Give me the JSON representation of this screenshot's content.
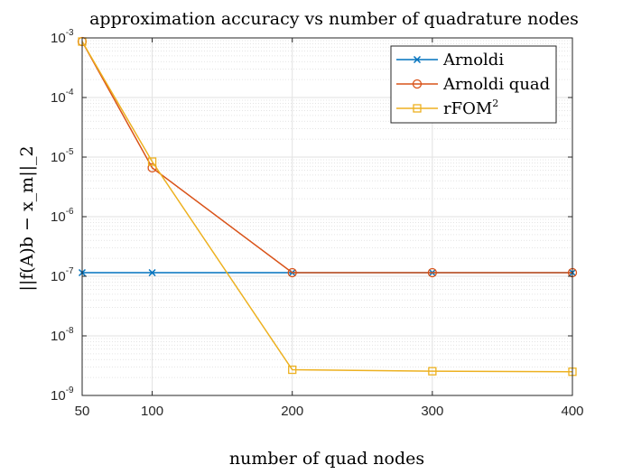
{
  "chart_data": {
    "type": "line",
    "title": "approximation accuracy vs number of quadrature nodes",
    "xlabel": "number of quad nodes",
    "ylabel": "||f(A)b − x_m||_2",
    "x": [
      50,
      100,
      200,
      300,
      400
    ],
    "xlim": [
      50,
      400
    ],
    "xticks": [
      50,
      100,
      200,
      300,
      400
    ],
    "yscale": "log",
    "ylim": [
      1e-09,
      0.001
    ],
    "yticks": [
      {
        "base": "10",
        "exp": "-9",
        "value": 1e-09
      },
      {
        "base": "10",
        "exp": "-8",
        "value": 1e-08
      },
      {
        "base": "10",
        "exp": "-7",
        "value": 1e-07
      },
      {
        "base": "10",
        "exp": "-6",
        "value": 1e-06
      },
      {
        "base": "10",
        "exp": "-5",
        "value": 1e-05
      },
      {
        "base": "10",
        "exp": "-4",
        "value": 0.0001
      },
      {
        "base": "10",
        "exp": "-3",
        "value": 0.001
      }
    ],
    "grid": true,
    "minor_grid": true,
    "legend_position": "top-right",
    "series": [
      {
        "name": "Arnoldi",
        "marker": "x",
        "color": "#0072BD",
        "values": [
          1.15e-07,
          1.15e-07,
          1.15e-07,
          1.15e-07,
          1.15e-07
        ]
      },
      {
        "name": "Arnoldi quad",
        "marker": "circle",
        "color": "#D95319",
        "values": [
          0.00087,
          6.6e-06,
          1.15e-07,
          1.15e-07,
          1.15e-07
        ]
      },
      {
        "name": "rFOM",
        "name_sup": "2",
        "marker": "square",
        "color": "#EDB120",
        "values": [
          0.00087,
          8.4e-06,
          2.7e-09,
          2.55e-09,
          2.5e-09
        ]
      }
    ]
  }
}
